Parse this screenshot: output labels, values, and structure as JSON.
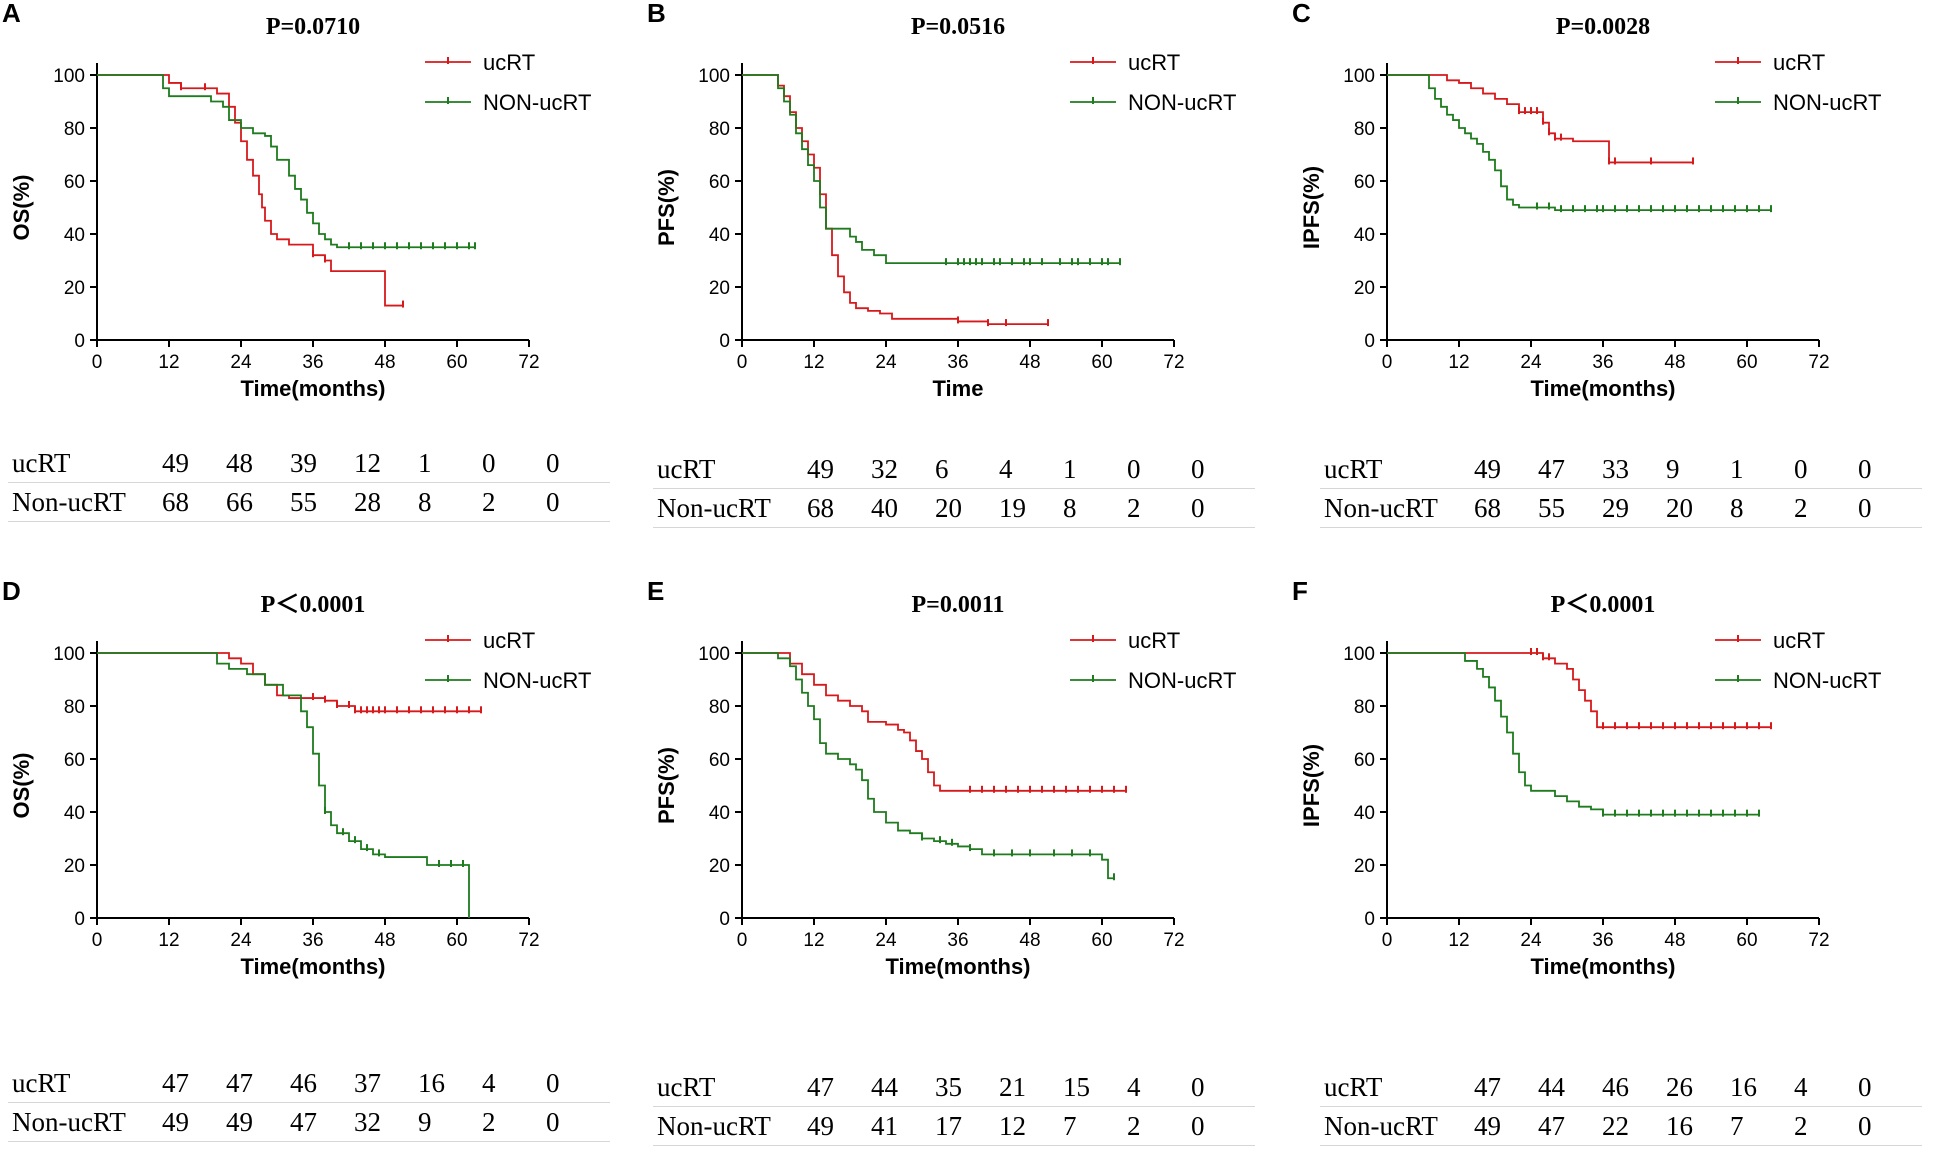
{
  "colors": {
    "ucrt": "#d7191c",
    "non_ucrt": "#1e7b1e",
    "axis": "#000000"
  },
  "chart_data": [
    {
      "panel": "A",
      "type": "line",
      "title": "P=0.0710",
      "xlabel": "Time(months)",
      "ylabel": "OS(%)",
      "xlim": [
        0,
        72
      ],
      "ylim": [
        0,
        100
      ],
      "xticks": [
        0,
        12,
        24,
        36,
        48,
        60,
        72
      ],
      "yticks": [
        0,
        20,
        40,
        60,
        80,
        100
      ],
      "legend": [
        "ucRT",
        "NON-ucRT"
      ],
      "series": [
        {
          "name": "ucRT",
          "color": "#d7191c",
          "x": [
            0,
            11,
            12,
            14,
            20,
            22,
            23,
            24,
            25,
            26,
            27,
            27.5,
            28,
            29,
            30,
            32,
            36,
            38,
            39,
            47,
            48,
            51
          ],
          "y": [
            100,
            100,
            97,
            95,
            93,
            88,
            82,
            75,
            68,
            62,
            55,
            50,
            45,
            40,
            38,
            36,
            32,
            30,
            26,
            26,
            13,
            13
          ],
          "censor_x": [
            14,
            18,
            36,
            38,
            51
          ]
        },
        {
          "name": "NON-ucRT",
          "color": "#1e7b1e",
          "x": [
            0,
            10,
            11,
            12,
            15,
            19,
            21,
            22,
            24,
            26,
            28,
            29,
            30,
            32,
            33,
            34,
            35,
            36,
            37,
            38,
            39,
            40,
            41,
            63
          ],
          "y": [
            100,
            100,
            95,
            92,
            92,
            90,
            88,
            83,
            80,
            78,
            77,
            73,
            68,
            62,
            57,
            53,
            48,
            44,
            40,
            38,
            36,
            35,
            35,
            35
          ],
          "censor_x": [
            42,
            44,
            46,
            48,
            50,
            52,
            54,
            56,
            58,
            60,
            62,
            63
          ]
        }
      ]
    },
    {
      "panel": "B",
      "type": "line",
      "title": "P=0.0516",
      "xlabel": "Time",
      "ylabel": "PFS(%)",
      "xlim": [
        0,
        72
      ],
      "ylim": [
        0,
        100
      ],
      "xticks": [
        0,
        12,
        24,
        36,
        48,
        60,
        72
      ],
      "yticks": [
        0,
        20,
        40,
        60,
        80,
        100
      ],
      "legend": [
        "ucRT",
        "NON-ucRT"
      ],
      "series": [
        {
          "name": "ucRT",
          "color": "#d7191c",
          "x": [
            0,
            5,
            6,
            7,
            8,
            9,
            10,
            11,
            12,
            13,
            14,
            15,
            16,
            17,
            18,
            19,
            21,
            23,
            25,
            30,
            36,
            41,
            51
          ],
          "y": [
            100,
            100,
            96,
            92,
            86,
            80,
            75,
            70,
            65,
            55,
            42,
            32,
            24,
            18,
            14,
            12,
            11,
            10,
            8,
            8,
            7,
            6,
            6
          ],
          "censor_x": [
            36,
            41,
            44,
            51
          ]
        },
        {
          "name": "NON-ucRT",
          "color": "#1e7b1e",
          "x": [
            0,
            5,
            6,
            7,
            8,
            9,
            10,
            11,
            12,
            13,
            14,
            18,
            19,
            20,
            22,
            24,
            63
          ],
          "y": [
            100,
            100,
            95,
            90,
            85,
            78,
            72,
            66,
            60,
            50,
            42,
            39,
            37,
            34,
            32,
            29,
            29
          ],
          "censor_x": [
            34,
            36,
            37,
            38,
            39,
            40,
            42,
            43,
            45,
            47,
            48,
            50,
            53,
            55,
            56,
            58,
            60,
            61,
            63
          ]
        }
      ]
    },
    {
      "panel": "C",
      "type": "line",
      "title": "P=0.0028",
      "xlabel": "Time(months)",
      "ylabel": "IPFS(%)",
      "xlim": [
        0,
        72
      ],
      "ylim": [
        0,
        100
      ],
      "xticks": [
        0,
        12,
        24,
        36,
        48,
        60,
        72
      ],
      "yticks": [
        0,
        20,
        40,
        60,
        80,
        100
      ],
      "legend": [
        "ucRT",
        "NON-ucRT"
      ],
      "series": [
        {
          "name": "ucRT",
          "color": "#d7191c",
          "x": [
            0,
            9,
            10,
            12,
            14,
            16,
            18,
            20,
            22,
            24,
            26,
            27,
            28,
            30,
            31,
            36,
            37,
            51
          ],
          "y": [
            100,
            100,
            98,
            97,
            95,
            93,
            91,
            89,
            86,
            86,
            82,
            78,
            76,
            76,
            75,
            75,
            67,
            67
          ],
          "censor_x": [
            22,
            23,
            24,
            25,
            26,
            27,
            28,
            29,
            37,
            38,
            44,
            51
          ]
        },
        {
          "name": "NON-ucRT",
          "color": "#1e7b1e",
          "x": [
            0,
            6,
            7,
            8,
            9,
            10,
            11,
            12,
            13,
            14,
            15,
            16,
            17,
            18,
            19,
            20,
            21,
            22,
            24,
            28,
            40,
            64
          ],
          "y": [
            100,
            100,
            95,
            91,
            88,
            85,
            83,
            80,
            78,
            76,
            74,
            71,
            68,
            64,
            58,
            53,
            51,
            50,
            50,
            49,
            49,
            49
          ],
          "censor_x": [
            25,
            27,
            29,
            31,
            33,
            35,
            36,
            38,
            40,
            42,
            44,
            46,
            48,
            50,
            52,
            54,
            56,
            58,
            60,
            62,
            64
          ]
        }
      ]
    },
    {
      "panel": "D",
      "type": "line",
      "title": "P＜0.0001",
      "xlabel": "Time(months)",
      "ylabel": "OS(%)",
      "xlim": [
        0,
        72
      ],
      "ylim": [
        0,
        100
      ],
      "xticks": [
        0,
        12,
        24,
        36,
        48,
        60,
        72
      ],
      "yticks": [
        0,
        20,
        40,
        60,
        80,
        100
      ],
      "legend": [
        "ucRT",
        "NON-ucRT"
      ],
      "series": [
        {
          "name": "ucRT",
          "color": "#d7191c",
          "x": [
            0,
            20,
            22,
            24,
            26,
            28,
            30,
            32,
            38,
            40,
            43,
            64
          ],
          "y": [
            100,
            100,
            98,
            96,
            92,
            88,
            84,
            83,
            82,
            80,
            78,
            78
          ],
          "censor_x": [
            36,
            38,
            40,
            42,
            43,
            44,
            45,
            46,
            47,
            48,
            50,
            52,
            54,
            56,
            58,
            60,
            62,
            64
          ]
        },
        {
          "name": "NON-ucRT",
          "color": "#1e7b1e",
          "x": [
            0,
            19,
            20,
            22,
            25,
            28,
            31,
            34,
            35,
            36,
            37,
            38,
            39,
            40,
            42,
            44,
            46,
            48,
            55,
            61,
            62
          ],
          "y": [
            100,
            100,
            96,
            94,
            92,
            88,
            84,
            78,
            72,
            62,
            50,
            40,
            35,
            32,
            29,
            26,
            24,
            23,
            20,
            20,
            0
          ],
          "censor_x": [
            38,
            41,
            43,
            45,
            47,
            57,
            59,
            61
          ]
        }
      ]
    },
    {
      "panel": "E",
      "type": "line",
      "title": "P=0.0011",
      "xlabel": "Time(months)",
      "ylabel": "PFS(%)",
      "xlim": [
        0,
        72
      ],
      "ylim": [
        0,
        100
      ],
      "xticks": [
        0,
        12,
        24,
        36,
        48,
        60,
        72
      ],
      "yticks": [
        0,
        20,
        40,
        60,
        80,
        100
      ],
      "legend": [
        "ucRT",
        "NON-ucRT"
      ],
      "series": [
        {
          "name": "ucRT",
          "color": "#d7191c",
          "x": [
            0,
            7,
            8,
            10,
            12,
            14,
            16,
            18,
            19,
            20,
            21,
            24,
            26,
            27,
            28,
            29,
            30,
            31,
            32,
            33,
            64
          ],
          "y": [
            100,
            100,
            96,
            92,
            88,
            84,
            82,
            80,
            80,
            78,
            74,
            73,
            71,
            70,
            67,
            63,
            60,
            55,
            50,
            48,
            48
          ],
          "censor_x": [
            38,
            40,
            42,
            44,
            46,
            48,
            50,
            52,
            54,
            56,
            58,
            60,
            62,
            64
          ]
        },
        {
          "name": "NON-ucRT",
          "color": "#1e7b1e",
          "x": [
            0,
            5,
            6,
            8,
            9,
            10,
            11,
            12,
            13,
            14,
            16,
            18,
            19,
            20,
            21,
            22,
            24,
            26,
            28,
            30,
            32,
            34,
            36,
            38,
            40,
            60,
            61,
            62
          ],
          "y": [
            100,
            100,
            98,
            95,
            90,
            85,
            80,
            75,
            66,
            62,
            60,
            58,
            56,
            52,
            45,
            40,
            36,
            33,
            32,
            30,
            29,
            28,
            27,
            26,
            24,
            22,
            15,
            15
          ],
          "censor_x": [
            30,
            33,
            35,
            38,
            42,
            45,
            48,
            52,
            55,
            58,
            62
          ]
        }
      ]
    },
    {
      "panel": "F",
      "type": "line",
      "title": "P＜0.0001",
      "xlabel": "Time(months)",
      "ylabel": "IPFS(%)",
      "xlim": [
        0,
        72
      ],
      "ylim": [
        0,
        100
      ],
      "xticks": [
        0,
        12,
        24,
        36,
        48,
        60,
        72
      ],
      "yticks": [
        0,
        20,
        40,
        60,
        80,
        100
      ],
      "legend": [
        "ucRT",
        "NON-ucRT"
      ],
      "series": [
        {
          "name": "ucRT",
          "color": "#d7191c",
          "x": [
            0,
            25,
            26,
            28,
            30,
            31,
            32,
            33,
            34,
            35,
            64
          ],
          "y": [
            100,
            100,
            98,
            96,
            94,
            90,
            86,
            82,
            78,
            72,
            72
          ],
          "censor_x": [
            24,
            25,
            26,
            27,
            36,
            38,
            40,
            42,
            44,
            46,
            48,
            50,
            52,
            54,
            56,
            58,
            60,
            62,
            64
          ]
        },
        {
          "name": "NON-ucRT",
          "color": "#1e7b1e",
          "x": [
            0,
            12,
            13,
            15,
            16,
            17,
            18,
            19,
            20,
            21,
            22,
            23,
            24,
            26,
            28,
            30,
            32,
            34,
            36,
            40,
            62
          ],
          "y": [
            100,
            100,
            97,
            94,
            91,
            87,
            82,
            76,
            70,
            62,
            55,
            50,
            48,
            48,
            46,
            44,
            42,
            41,
            39,
            39,
            39
          ],
          "censor_x": [
            36,
            38,
            40,
            42,
            44,
            46,
            48,
            50,
            52,
            54,
            56,
            58,
            60,
            62
          ]
        }
      ]
    }
  ],
  "risk_tables": [
    {
      "panel": "A",
      "rows": [
        {
          "label": "ucRT",
          "values": [
            "49",
            "48",
            "39",
            "12",
            "1",
            "0",
            "0"
          ]
        },
        {
          "label": "Non-ucRT",
          "values": [
            "68",
            "66",
            "55",
            "28",
            "8",
            "2",
            "0"
          ]
        }
      ]
    },
    {
      "panel": "B",
      "rows": [
        {
          "label": "ucRT",
          "values": [
            "49",
            "32",
            "6",
            "4",
            "1",
            "0",
            "0"
          ]
        },
        {
          "label": "Non-ucRT",
          "values": [
            "68",
            "40",
            "20",
            "19",
            "8",
            "2",
            "0"
          ]
        }
      ]
    },
    {
      "panel": "C",
      "rows": [
        {
          "label": "ucRT",
          "values": [
            "49",
            "47",
            "33",
            "9",
            "1",
            "0",
            "0"
          ]
        },
        {
          "label": "Non-ucRT",
          "values": [
            "68",
            "55",
            "29",
            "20",
            "8",
            "2",
            "0"
          ]
        }
      ]
    },
    {
      "panel": "D",
      "rows": [
        {
          "label": "ucRT",
          "values": [
            "47",
            "47",
            "46",
            "37",
            "16",
            "4",
            "0"
          ]
        },
        {
          "label": "Non-ucRT",
          "values": [
            "49",
            "49",
            "47",
            "32",
            "9",
            "2",
            "0"
          ]
        }
      ]
    },
    {
      "panel": "E",
      "rows": [
        {
          "label": "ucRT",
          "values": [
            "47",
            "44",
            "35",
            "21",
            "15",
            "4",
            "0"
          ]
        },
        {
          "label": "Non-ucRT",
          "values": [
            "49",
            "41",
            "17",
            "12",
            "7",
            "2",
            "0"
          ]
        }
      ]
    },
    {
      "panel": "F",
      "rows": [
        {
          "label": "ucRT",
          "values": [
            "47",
            "44",
            "46",
            "26",
            "16",
            "4",
            "0"
          ]
        },
        {
          "label": "Non-ucRT",
          "values": [
            "49",
            "47",
            "22",
            "16",
            "7",
            "2",
            "0"
          ]
        }
      ]
    }
  ]
}
